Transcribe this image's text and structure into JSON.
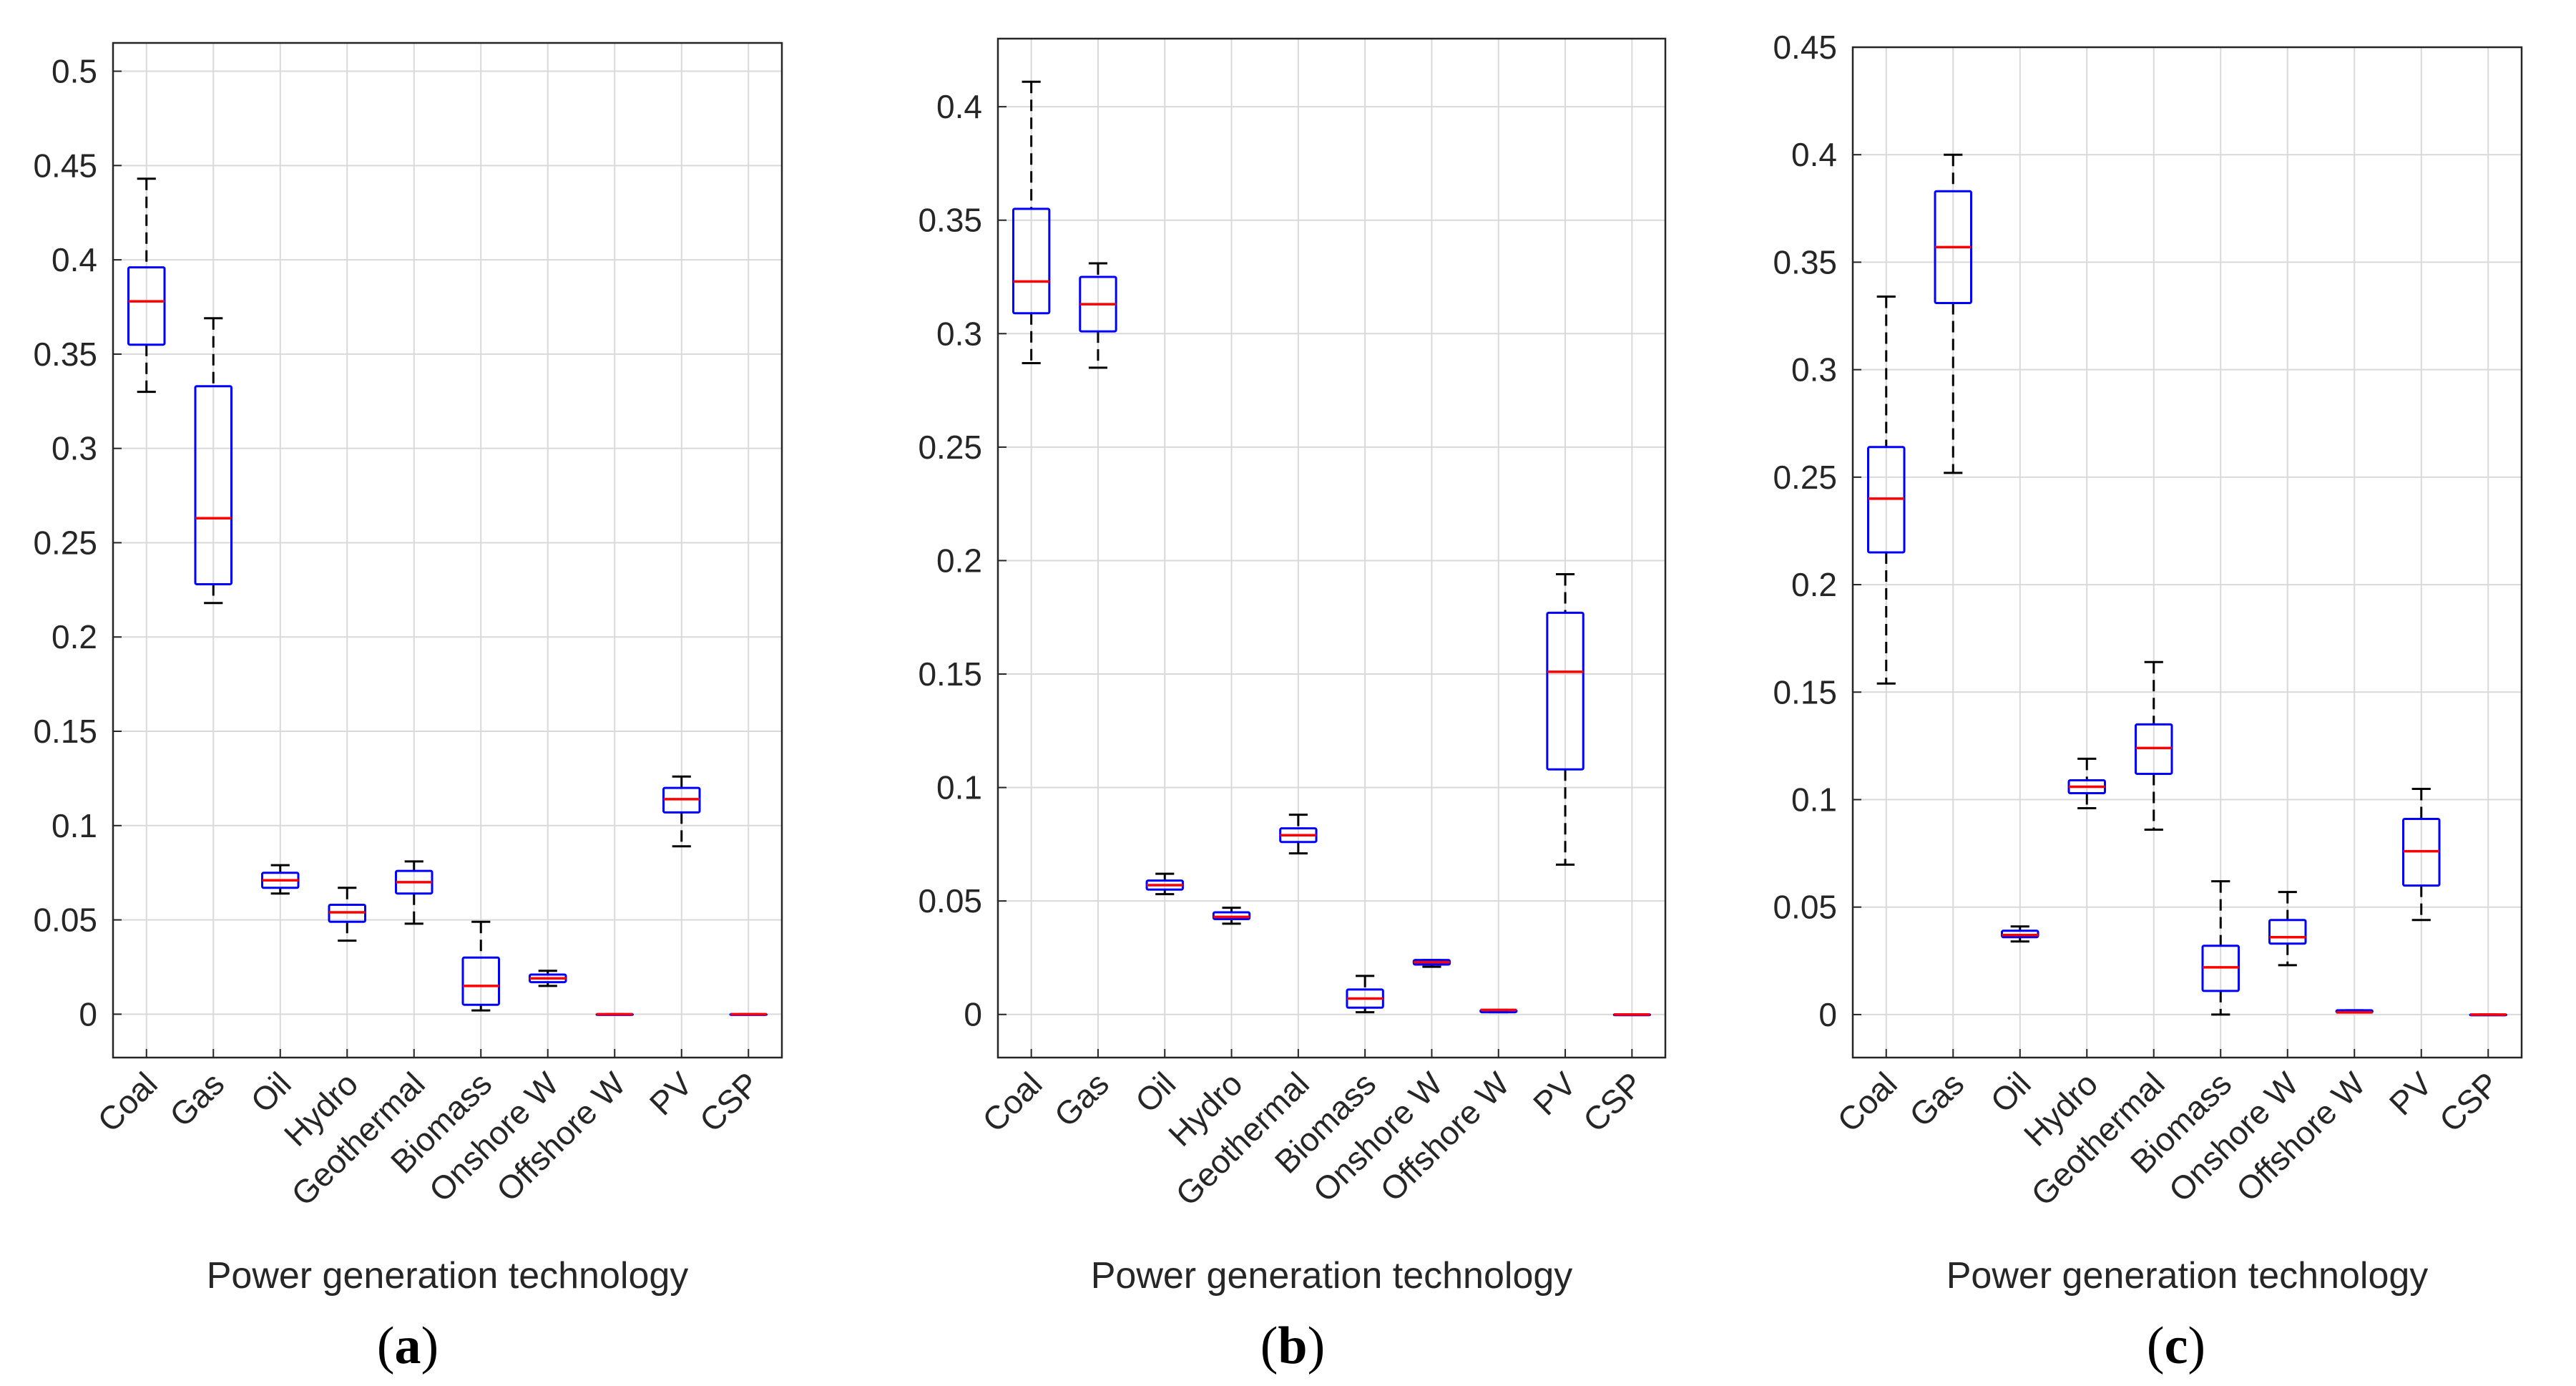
{
  "figure_labels": [
    "a",
    "b",
    "c"
  ],
  "chart_data": [
    {
      "type": "boxplot",
      "panel": "a",
      "xlabel": "Power generation technology",
      "ylabel": "",
      "categories": [
        "Coal",
        "Gas",
        "Oil",
        "Hydro",
        "Geothermal",
        "Biomass",
        "Onshore W",
        "Offshore W",
        "PV",
        "CSP"
      ],
      "ylim": [
        -0.023,
        0.515
      ],
      "yticks": [
        0,
        0.05,
        0.1,
        0.15,
        0.2,
        0.25,
        0.3,
        0.35,
        0.4,
        0.45,
        0.5
      ],
      "ytick_labels": [
        "0",
        "0.05",
        "0.1",
        "0.15",
        "0.2",
        "0.25",
        "0.3",
        "0.35",
        "0.4",
        "0.45",
        "0.5"
      ],
      "grid": true,
      "boxes": [
        {
          "min": 0.33,
          "q1": 0.355,
          "median": 0.378,
          "q3": 0.396,
          "max": 0.443
        },
        {
          "min": 0.218,
          "q1": 0.228,
          "median": 0.263,
          "q3": 0.333,
          "max": 0.369
        },
        {
          "min": 0.064,
          "q1": 0.067,
          "median": 0.071,
          "q3": 0.075,
          "max": 0.079
        },
        {
          "min": 0.039,
          "q1": 0.049,
          "median": 0.054,
          "q3": 0.058,
          "max": 0.067
        },
        {
          "min": 0.048,
          "q1": 0.064,
          "median": 0.07,
          "q3": 0.076,
          "max": 0.081
        },
        {
          "min": 0.002,
          "q1": 0.005,
          "median": 0.015,
          "q3": 0.03,
          "max": 0.049
        },
        {
          "min": 0.015,
          "q1": 0.017,
          "median": 0.019,
          "q3": 0.021,
          "max": 0.023
        },
        {
          "min": 0,
          "q1": 0,
          "median": 0,
          "q3": 0,
          "max": 0
        },
        {
          "min": 0.089,
          "q1": 0.107,
          "median": 0.114,
          "q3": 0.12,
          "max": 0.126
        },
        {
          "min": 0,
          "q1": 0,
          "median": 0,
          "q3": 0,
          "max": 0
        }
      ]
    },
    {
      "type": "boxplot",
      "panel": "b",
      "xlabel": "Power generation technology",
      "ylabel": "",
      "categories": [
        "Coal",
        "Gas",
        "Oil",
        "Hydro",
        "Geothermal",
        "Biomass",
        "Onshore W",
        "Offshore W",
        "PV",
        "CSP"
      ],
      "ylim": [
        -0.019,
        0.43
      ],
      "yticks": [
        0,
        0.05,
        0.1,
        0.15,
        0.2,
        0.25,
        0.3,
        0.35,
        0.4
      ],
      "ytick_labels": [
        "0",
        "0.05",
        "0.1",
        "0.15",
        "0.2",
        "0.25",
        "0.3",
        "0.35",
        "0.4"
      ],
      "grid": true,
      "boxes": [
        {
          "min": 0.287,
          "q1": 0.309,
          "median": 0.323,
          "q3": 0.355,
          "max": 0.411
        },
        {
          "min": 0.285,
          "q1": 0.301,
          "median": 0.313,
          "q3": 0.325,
          "max": 0.331
        },
        {
          "min": 0.053,
          "q1": 0.055,
          "median": 0.057,
          "q3": 0.059,
          "max": 0.062
        },
        {
          "min": 0.04,
          "q1": 0.042,
          "median": 0.043,
          "q3": 0.045,
          "max": 0.047
        },
        {
          "min": 0.071,
          "q1": 0.076,
          "median": 0.079,
          "q3": 0.082,
          "max": 0.088
        },
        {
          "min": 0.001,
          "q1": 0.003,
          "median": 0.007,
          "q3": 0.011,
          "max": 0.017
        },
        {
          "min": 0.021,
          "q1": 0.022,
          "median": 0.023,
          "q3": 0.024,
          "max": 0.024
        },
        {
          "min": 0.001,
          "q1": 0.001,
          "median": 0.002,
          "q3": 0.002,
          "max": 0.002
        },
        {
          "min": 0.066,
          "q1": 0.108,
          "median": 0.151,
          "q3": 0.177,
          "max": 0.194
        },
        {
          "min": 0,
          "q1": 0,
          "median": 0,
          "q3": 0,
          "max": 0
        }
      ]
    },
    {
      "type": "boxplot",
      "panel": "c",
      "xlabel": "Power generation technology",
      "ylabel": "",
      "categories": [
        "Coal",
        "Gas",
        "Oil",
        "Hydro",
        "Geothermal",
        "Biomass",
        "Onshore W",
        "Offshore W",
        "PV",
        "CSP"
      ],
      "ylim": [
        -0.02,
        0.45
      ],
      "yticks": [
        0,
        0.05,
        0.1,
        0.15,
        0.2,
        0.25,
        0.3,
        0.35,
        0.4,
        0.45
      ],
      "ytick_labels": [
        "0",
        "0.05",
        "0.1",
        "0.15",
        "0.2",
        "0.25",
        "0.3",
        "0.35",
        "0.4",
        "0.45"
      ],
      "grid": true,
      "boxes": [
        {
          "min": 0.154,
          "q1": 0.215,
          "median": 0.24,
          "q3": 0.264,
          "max": 0.334
        },
        {
          "min": 0.252,
          "q1": 0.331,
          "median": 0.357,
          "q3": 0.383,
          "max": 0.4
        },
        {
          "min": 0.034,
          "q1": 0.036,
          "median": 0.037,
          "q3": 0.039,
          "max": 0.041
        },
        {
          "min": 0.096,
          "q1": 0.103,
          "median": 0.106,
          "q3": 0.109,
          "max": 0.119
        },
        {
          "min": 0.086,
          "q1": 0.112,
          "median": 0.124,
          "q3": 0.135,
          "max": 0.164
        },
        {
          "min": 0,
          "q1": 0.011,
          "median": 0.022,
          "q3": 0.032,
          "max": 0.062
        },
        {
          "min": 0.023,
          "q1": 0.033,
          "median": 0.036,
          "q3": 0.044,
          "max": 0.057
        },
        {
          "min": 0.001,
          "q1": 0.001,
          "median": 0.001,
          "q3": 0.002,
          "max": 0.002
        },
        {
          "min": 0.044,
          "q1": 0.06,
          "median": 0.076,
          "q3": 0.091,
          "max": 0.105
        },
        {
          "min": 0,
          "q1": 0,
          "median": 0,
          "q3": 0,
          "max": 0
        }
      ]
    }
  ]
}
